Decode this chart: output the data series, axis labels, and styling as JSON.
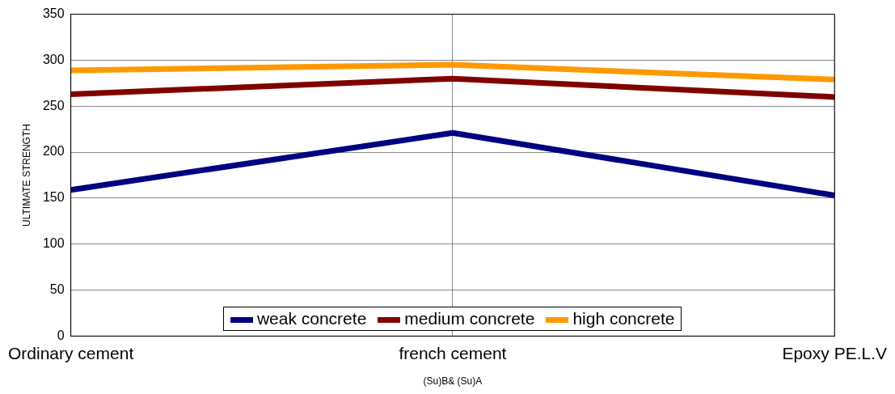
{
  "chart_data": {
    "type": "line",
    "xlabel": "(Su)B& (Su)A",
    "ylabel": "ULTIMATE STRENGTH",
    "categories": [
      "Ordinary cement",
      "french cement",
      "Epoxy PE.L.V"
    ],
    "series": [
      {
        "name": "weak concrete",
        "color": "#000080",
        "values": [
          159,
          221,
          153
        ]
      },
      {
        "name": "medium concrete",
        "color": "#800000",
        "values": [
          263,
          280,
          260
        ]
      },
      {
        "name": "high concrete",
        "color": "#ff9900",
        "values": [
          289,
          295,
          279
        ]
      }
    ],
    "ylim": [
      0,
      350
    ],
    "yticks": [
      0,
      50,
      100,
      150,
      200,
      250,
      300,
      350
    ],
    "grid": true,
    "legend": "bottom",
    "marker": "none",
    "line_style": "solid"
  }
}
